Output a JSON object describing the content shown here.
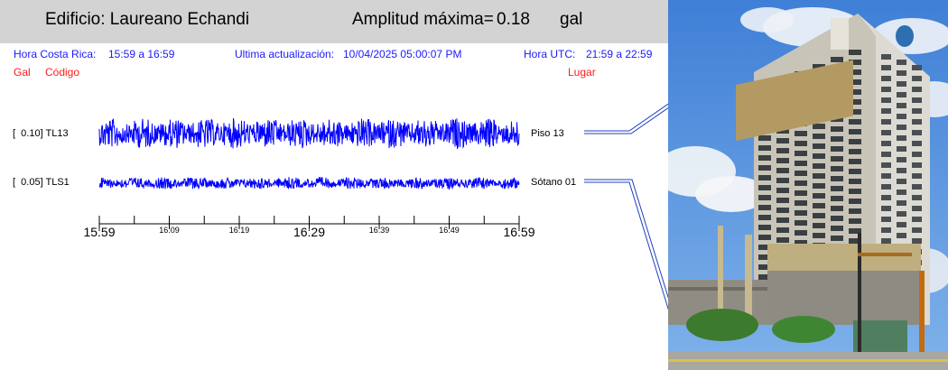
{
  "header": {
    "building": "Edificio: Laureano Echandi",
    "amplitude_label": "Amplitud máxima=",
    "amplitude_value": "0.18",
    "amplitude_unit": "gal"
  },
  "info": {
    "local_time_label": "Hora Costa Rica:",
    "local_time_range": "15:59 a 16:59",
    "update_label": "Ultima actualización:",
    "update_value": "10/04/2025 05:00:07 PM",
    "utc_label": "Hora UTC:",
    "utc_range": "21:59 a 22:59"
  },
  "legend": {
    "gal": "Gal",
    "code": "Código",
    "place": "Lugar"
  },
  "channels": [
    {
      "amp": "[  0.10] TL13",
      "location": "Piso 13",
      "level": 0.1
    },
    {
      "amp": "[  0.05] TLS1",
      "location": "Sótano 01",
      "level": 0.05
    }
  ],
  "time_axis": {
    "major": [
      "15:59",
      "16:29",
      "16:59"
    ],
    "minor": [
      "16:09",
      "16:19",
      "16:39",
      "16:49"
    ]
  },
  "colors": {
    "trace": "#0000ff",
    "info": "#1a1aff",
    "legend": "#ff1a1a",
    "header_bg": "#d3d3d3"
  }
}
